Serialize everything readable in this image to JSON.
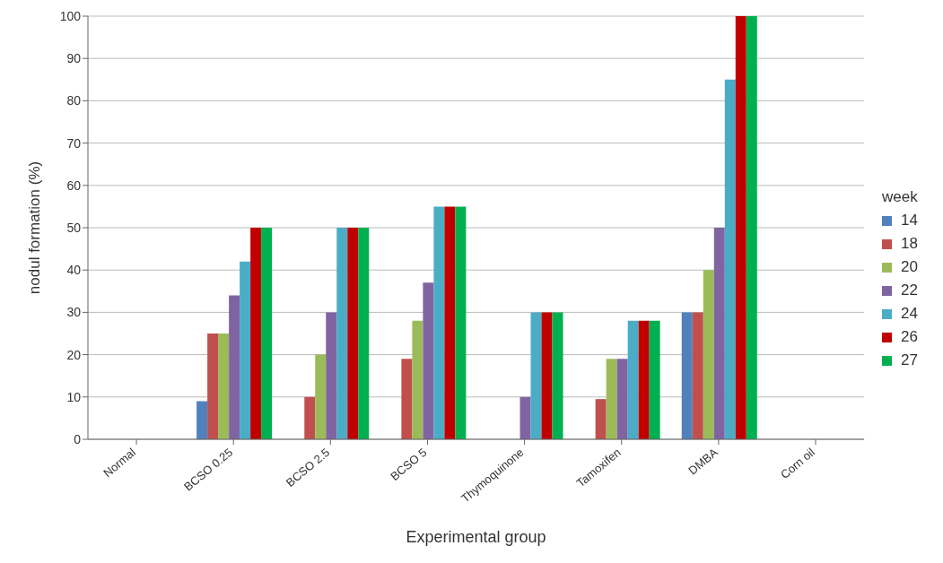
{
  "chart_data": {
    "type": "bar",
    "xlabel": "Experimental group",
    "ylabel": "nodul formation (%)",
    "legend_title": "week",
    "categories": [
      "Normal",
      "BCSO 0.25",
      "BCSO 2.5",
      "BCSO 5",
      "Thymoquinone",
      "Tamoxifen",
      "DMBA",
      "Corn oil"
    ],
    "series": [
      {
        "name": "14",
        "color": "#4f81bd",
        "values": [
          0,
          9,
          0,
          0,
          0,
          0,
          30,
          0
        ]
      },
      {
        "name": "18",
        "color": "#c0504d",
        "values": [
          0,
          25,
          10,
          19,
          0,
          9.5,
          30,
          0
        ]
      },
      {
        "name": "20",
        "color": "#9bbb59",
        "values": [
          0,
          25,
          20,
          28,
          0,
          19,
          40,
          0
        ]
      },
      {
        "name": "22",
        "color": "#8064a2",
        "values": [
          0,
          34,
          30,
          37,
          10,
          19,
          50,
          0
        ]
      },
      {
        "name": "24",
        "color": "#4bacc6",
        "values": [
          0,
          42,
          50,
          55,
          30,
          28,
          85,
          0
        ]
      },
      {
        "name": "26",
        "color": "#c00000",
        "values": [
          0,
          50,
          50,
          55,
          30,
          28,
          100,
          0
        ]
      },
      {
        "name": "27",
        "color": "#00b050",
        "values": [
          0,
          50,
          50,
          55,
          30,
          28,
          100,
          0
        ]
      }
    ],
    "ylim": [
      0,
      100
    ],
    "yticks": [
      0,
      10,
      20,
      30,
      40,
      50,
      60,
      70,
      80,
      90,
      100
    ],
    "grid": "y",
    "legend": "right"
  }
}
